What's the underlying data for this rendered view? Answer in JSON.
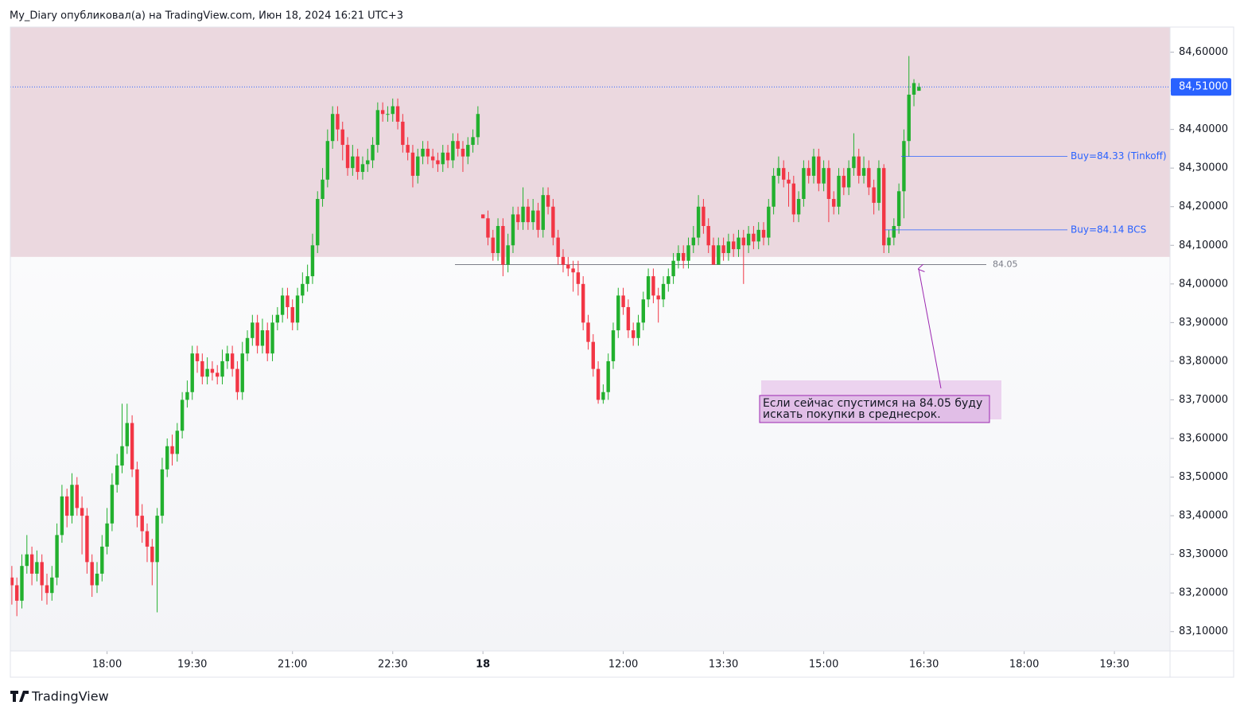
{
  "header": "My_Diary опубликовал(а) на TradingView.com, Июн 18, 2024 16:21 UTC+3",
  "footer": "TradingView",
  "chart_data": {
    "type": "candlestick",
    "up_color": "#22b02e",
    "down_color": "#f23645",
    "x": [
      0,
      1,
      2,
      3,
      4,
      5,
      6,
      7,
      8,
      9,
      10,
      11,
      12,
      13,
      14,
      15,
      16,
      17,
      18,
      19,
      20,
      21,
      22,
      23,
      24,
      25,
      26,
      27,
      28,
      29,
      30,
      31,
      32,
      33,
      34,
      35,
      36,
      37,
      38,
      39,
      40,
      41,
      42,
      43,
      44,
      45,
      46,
      47,
      48,
      49,
      50,
      51,
      52,
      53,
      54,
      55,
      56,
      57,
      58,
      59,
      60,
      61,
      62,
      63,
      64,
      65,
      66,
      67,
      68,
      69,
      70,
      71,
      72,
      73,
      74,
      75,
      76,
      77,
      78,
      79,
      80,
      81,
      82,
      83,
      84,
      85,
      86,
      87,
      88,
      89,
      90,
      91,
      92,
      93,
      94,
      95,
      96,
      97,
      98,
      99,
      100,
      101,
      102,
      103,
      104,
      105,
      106,
      107,
      108,
      109,
      110,
      111,
      112,
      113,
      114,
      115,
      116,
      117,
      118,
      119,
      120,
      121,
      122,
      123,
      124,
      125,
      126,
      127,
      128,
      129,
      130,
      131,
      132,
      133,
      134,
      135,
      136,
      137,
      138,
      139,
      140,
      141,
      142,
      143,
      144,
      145,
      146,
      147,
      148,
      149,
      150,
      151,
      152,
      153,
      154,
      155,
      156,
      157,
      158,
      159,
      160,
      161,
      162,
      163,
      164,
      165,
      166,
      167,
      168,
      169,
      170,
      171,
      172,
      173,
      174,
      175,
      176,
      177,
      178,
      179,
      180,
      181
    ],
    "ohlc": [
      [
        83.24,
        83.27,
        83.17,
        83.22
      ],
      [
        83.22,
        83.24,
        83.14,
        83.18
      ],
      [
        83.18,
        83.3,
        83.16,
        83.27
      ],
      [
        83.27,
        83.35,
        83.25,
        83.3
      ],
      [
        83.3,
        83.32,
        83.22,
        83.25
      ],
      [
        83.25,
        83.31,
        83.23,
        83.28
      ],
      [
        83.28,
        83.3,
        83.18,
        83.22
      ],
      [
        83.22,
        83.25,
        83.17,
        83.2
      ],
      [
        83.2,
        83.27,
        83.18,
        83.24
      ],
      [
        83.24,
        83.38,
        83.22,
        83.35
      ],
      [
        83.35,
        83.48,
        83.33,
        83.45
      ],
      [
        83.45,
        83.47,
        83.37,
        83.4
      ],
      [
        83.4,
        83.51,
        83.38,
        83.48
      ],
      [
        83.48,
        83.5,
        83.4,
        83.42
      ],
      [
        83.42,
        83.45,
        83.3,
        83.4
      ],
      [
        83.4,
        83.42,
        83.25,
        83.28
      ],
      [
        83.28,
        83.3,
        83.19,
        83.22
      ],
      [
        83.22,
        83.28,
        83.2,
        83.25
      ],
      [
        83.25,
        83.35,
        83.23,
        83.32
      ],
      [
        83.32,
        83.42,
        83.3,
        83.38
      ],
      [
        83.38,
        83.51,
        83.36,
        83.48
      ],
      [
        83.48,
        83.56,
        83.46,
        83.53
      ],
      [
        83.53,
        83.69,
        83.51,
        83.58
      ],
      [
        83.58,
        83.69,
        83.56,
        83.64
      ],
      [
        83.64,
        83.66,
        83.5,
        83.52
      ],
      [
        83.52,
        83.54,
        83.37,
        83.4
      ],
      [
        83.4,
        83.43,
        83.33,
        83.36
      ],
      [
        83.36,
        83.38,
        83.28,
        83.32
      ],
      [
        83.32,
        83.34,
        83.22,
        83.28
      ],
      [
        83.28,
        83.42,
        83.15,
        83.4
      ],
      [
        83.4,
        83.55,
        83.38,
        83.52
      ],
      [
        83.52,
        83.6,
        83.5,
        83.58
      ],
      [
        83.58,
        83.61,
        83.53,
        83.56
      ],
      [
        83.56,
        83.64,
        83.54,
        83.62
      ],
      [
        83.62,
        83.72,
        83.6,
        83.7
      ],
      [
        83.7,
        83.75,
        83.68,
        83.72
      ],
      [
        83.72,
        83.84,
        83.7,
        83.82
      ],
      [
        83.82,
        83.84,
        83.77,
        83.8
      ],
      [
        83.8,
        83.82,
        83.74,
        83.76
      ],
      [
        83.76,
        83.81,
        83.74,
        83.78
      ],
      [
        83.78,
        83.8,
        83.75,
        83.77
      ],
      [
        83.77,
        83.79,
        83.74,
        83.76
      ],
      [
        83.76,
        83.83,
        83.74,
        83.8
      ],
      [
        83.8,
        83.84,
        83.78,
        83.82
      ],
      [
        83.82,
        83.84,
        83.76,
        83.78
      ],
      [
        83.78,
        83.8,
        83.7,
        83.72
      ],
      [
        83.72,
        83.85,
        83.7,
        83.82
      ],
      [
        83.82,
        83.88,
        83.8,
        83.86
      ],
      [
        83.86,
        83.92,
        83.84,
        83.9
      ],
      [
        83.9,
        83.92,
        83.82,
        83.84
      ],
      [
        83.84,
        83.91,
        83.82,
        83.88
      ],
      [
        83.88,
        83.9,
        83.8,
        83.82
      ],
      [
        83.82,
        83.92,
        83.8,
        83.9
      ],
      [
        83.9,
        83.94,
        83.88,
        83.92
      ],
      [
        83.92,
        83.99,
        83.9,
        83.97
      ],
      [
        83.97,
        83.99,
        83.91,
        83.94
      ],
      [
        83.94,
        83.96,
        83.88,
        83.9
      ],
      [
        83.9,
        83.99,
        83.88,
        83.97
      ],
      [
        83.97,
        84.03,
        83.95,
        84.0
      ],
      [
        84.0,
        84.05,
        83.98,
        84.02
      ],
      [
        84.02,
        84.13,
        84.0,
        84.1
      ],
      [
        84.1,
        84.24,
        84.08,
        84.22
      ],
      [
        84.22,
        84.3,
        84.2,
        84.27
      ],
      [
        84.27,
        84.4,
        84.25,
        84.37
      ],
      [
        84.37,
        84.46,
        84.35,
        84.44
      ],
      [
        84.44,
        84.46,
        84.37,
        84.4
      ],
      [
        84.4,
        84.42,
        84.32,
        84.36
      ],
      [
        84.36,
        84.38,
        84.28,
        84.3
      ],
      [
        84.3,
        84.36,
        84.28,
        84.33
      ],
      [
        84.33,
        84.35,
        84.27,
        84.29
      ],
      [
        84.29,
        84.33,
        84.27,
        84.31
      ],
      [
        84.31,
        84.35,
        84.29,
        84.32
      ],
      [
        84.32,
        84.38,
        84.3,
        84.36
      ],
      [
        84.36,
        84.47,
        84.34,
        84.45
      ],
      [
        84.45,
        84.47,
        84.42,
        84.44
      ],
      [
        84.44,
        84.46,
        84.42,
        84.44
      ],
      [
        84.44,
        84.48,
        84.42,
        84.46
      ],
      [
        84.46,
        84.48,
        84.4,
        84.42
      ],
      [
        84.42,
        84.44,
        84.34,
        84.36
      ],
      [
        84.36,
        84.38,
        84.32,
        84.34
      ],
      [
        84.34,
        84.36,
        84.25,
        84.28
      ],
      [
        84.28,
        84.35,
        84.26,
        84.33
      ],
      [
        84.33,
        84.37,
        84.31,
        84.35
      ],
      [
        84.35,
        84.37,
        84.31,
        84.33
      ],
      [
        84.33,
        84.35,
        84.3,
        84.32
      ],
      [
        84.32,
        84.34,
        84.29,
        84.31
      ],
      [
        84.31,
        84.36,
        84.29,
        84.34
      ],
      [
        84.34,
        84.36,
        84.3,
        84.32
      ],
      [
        84.32,
        84.39,
        84.3,
        84.37
      ],
      [
        84.37,
        84.39,
        84.33,
        84.35
      ],
      [
        84.35,
        84.37,
        84.29,
        84.33
      ],
      [
        84.33,
        84.38,
        84.31,
        84.36
      ],
      [
        84.36,
        84.4,
        84.34,
        84.38
      ],
      [
        84.38,
        84.46,
        84.36,
        84.44
      ],
      [
        84.18,
        84.18,
        84.17,
        84.17
      ],
      [
        84.17,
        84.19,
        84.1,
        84.12
      ],
      [
        84.12,
        84.14,
        84.06,
        84.08
      ],
      [
        84.08,
        84.17,
        84.06,
        84.15
      ],
      [
        84.15,
        84.17,
        84.02,
        84.05
      ],
      [
        84.05,
        84.13,
        84.03,
        84.1
      ],
      [
        84.1,
        84.2,
        84.08,
        84.18
      ],
      [
        84.18,
        84.2,
        84.14,
        84.16
      ],
      [
        84.16,
        84.25,
        84.14,
        84.2
      ],
      [
        84.2,
        84.22,
        84.14,
        84.16
      ],
      [
        84.16,
        84.22,
        84.14,
        84.19
      ],
      [
        84.19,
        84.21,
        84.12,
        84.14
      ],
      [
        84.14,
        84.25,
        84.12,
        84.23
      ],
      [
        84.23,
        84.25,
        84.18,
        84.2
      ],
      [
        84.2,
        84.22,
        84.1,
        84.12
      ],
      [
        84.12,
        84.14,
        84.05,
        84.07
      ],
      [
        84.07,
        84.09,
        84.03,
        84.05
      ],
      [
        84.05,
        84.07,
        84.02,
        84.04
      ],
      [
        84.04,
        84.06,
        83.98,
        84.03
      ],
      [
        84.03,
        84.06,
        83.97,
        84.0
      ],
      [
        84.0,
        84.02,
        83.88,
        83.9
      ],
      [
        83.9,
        83.92,
        83.83,
        83.85
      ],
      [
        83.85,
        83.87,
        83.76,
        83.78
      ],
      [
        83.78,
        83.8,
        83.69,
        83.7
      ],
      [
        83.7,
        83.74,
        83.69,
        83.72
      ],
      [
        83.72,
        83.82,
        83.7,
        83.8
      ],
      [
        83.8,
        83.9,
        83.78,
        83.88
      ],
      [
        83.88,
        83.99,
        83.86,
        83.97
      ],
      [
        83.97,
        83.99,
        83.92,
        83.94
      ],
      [
        83.94,
        83.96,
        83.86,
        83.88
      ],
      [
        83.88,
        83.9,
        83.84,
        83.86
      ],
      [
        83.86,
        83.92,
        83.84,
        83.9
      ],
      [
        83.9,
        83.98,
        83.88,
        83.96
      ],
      [
        83.96,
        84.04,
        83.94,
        84.02
      ],
      [
        84.02,
        84.04,
        83.95,
        83.97
      ],
      [
        83.97,
        83.99,
        83.9,
        83.96
      ],
      [
        83.96,
        84.02,
        83.94,
        84.0
      ],
      [
        84.0,
        84.04,
        83.98,
        84.02
      ],
      [
        84.02,
        84.08,
        84.0,
        84.06
      ],
      [
        84.06,
        84.1,
        84.04,
        84.08
      ],
      [
        84.08,
        84.1,
        84.04,
        84.06
      ],
      [
        84.06,
        84.12,
        84.04,
        84.1
      ],
      [
        84.1,
        84.15,
        84.08,
        84.12
      ],
      [
        84.12,
        84.23,
        84.1,
        84.2
      ],
      [
        84.2,
        84.22,
        84.13,
        84.15
      ],
      [
        84.15,
        84.17,
        84.08,
        84.1
      ],
      [
        84.1,
        84.12,
        84.05,
        84.05
      ],
      [
        84.05,
        84.12,
        84.05,
        84.1
      ],
      [
        84.1,
        84.12,
        84.06,
        84.08
      ],
      [
        84.08,
        84.13,
        84.06,
        84.11
      ],
      [
        84.11,
        84.13,
        84.07,
        84.09
      ],
      [
        84.09,
        84.14,
        84.07,
        84.12
      ],
      [
        84.12,
        84.14,
        84.0,
        84.1
      ],
      [
        84.1,
        84.15,
        84.08,
        84.13
      ],
      [
        84.13,
        84.15,
        84.09,
        84.11
      ],
      [
        84.11,
        84.16,
        84.09,
        84.14
      ],
      [
        84.14,
        84.16,
        84.1,
        84.12
      ],
      [
        84.12,
        84.22,
        84.1,
        84.2
      ],
      [
        84.2,
        84.3,
        84.18,
        84.28
      ],
      [
        84.28,
        84.33,
        84.26,
        84.3
      ],
      [
        84.3,
        84.32,
        84.25,
        84.27
      ],
      [
        84.27,
        84.29,
        84.2,
        84.26
      ],
      [
        84.26,
        84.28,
        84.16,
        84.18
      ],
      [
        84.18,
        84.24,
        84.16,
        84.22
      ],
      [
        84.22,
        84.32,
        84.2,
        84.3
      ],
      [
        84.3,
        84.32,
        84.26,
        84.28
      ],
      [
        84.28,
        84.35,
        84.26,
        84.33
      ],
      [
        84.33,
        84.35,
        84.24,
        84.26
      ],
      [
        84.26,
        84.32,
        84.24,
        84.3
      ],
      [
        84.3,
        84.32,
        84.16,
        84.22
      ],
      [
        84.22,
        84.24,
        84.18,
        84.2
      ],
      [
        84.2,
        84.3,
        84.18,
        84.28
      ],
      [
        84.28,
        84.3,
        84.23,
        84.25
      ],
      [
        84.25,
        84.32,
        84.23,
        84.3
      ],
      [
        84.3,
        84.39,
        84.28,
        84.33
      ],
      [
        84.33,
        84.35,
        84.26,
        84.28
      ],
      [
        84.28,
        84.33,
        84.26,
        84.3
      ],
      [
        84.3,
        84.32,
        84.23,
        84.25
      ],
      [
        84.25,
        84.27,
        84.18,
        84.21
      ],
      [
        84.21,
        84.32,
        84.19,
        84.3
      ],
      [
        84.3,
        84.31,
        84.08,
        84.1
      ],
      [
        84.1,
        84.14,
        84.08,
        84.12
      ],
      [
        84.12,
        84.17,
        84.1,
        84.15
      ],
      [
        84.15,
        84.26,
        84.13,
        84.24
      ],
      [
        84.24,
        84.4,
        84.17,
        84.37
      ],
      [
        84.37,
        84.59,
        84.33,
        84.49
      ],
      [
        84.49,
        84.53,
        84.46,
        84.52
      ],
      [
        84.5,
        84.52,
        84.5,
        84.51
      ]
    ],
    "xlim": [
      -0.3,
      231.1
    ],
    "xticks": [
      {
        "value": 19,
        "label": "18:00"
      },
      {
        "value": 36,
        "label": "19:30"
      },
      {
        "value": 56,
        "label": "21:00"
      },
      {
        "value": 76,
        "label": "22:30"
      },
      {
        "value": 94,
        "label": "18",
        "bold": true
      },
      {
        "value": 122,
        "label": "12:00"
      },
      {
        "value": 142,
        "label": "13:30"
      },
      {
        "value": 162,
        "label": "15:00"
      },
      {
        "value": 182,
        "label": "16:30"
      },
      {
        "value": 202,
        "label": "18:00"
      },
      {
        "value": 220,
        "label": "19:30"
      }
    ],
    "ylim": [
      83.05,
      84.665
    ],
    "yticks": [
      {
        "value": 83.1,
        "label": "83,10000"
      },
      {
        "value": 83.2,
        "label": "83,20000"
      },
      {
        "value": 83.3,
        "label": "83,30000"
      },
      {
        "value": 83.4,
        "label": "83,40000"
      },
      {
        "value": 83.5,
        "label": "83,50000"
      },
      {
        "value": 83.6,
        "label": "83,60000"
      },
      {
        "value": 83.7,
        "label": "83,70000"
      },
      {
        "value": 83.8,
        "label": "83,80000"
      },
      {
        "value": 83.9,
        "label": "83,90000"
      },
      {
        "value": 84.0,
        "label": "84,00000"
      },
      {
        "value": 84.1,
        "label": "84,10000"
      },
      {
        "value": 84.2,
        "label": "84,20000"
      },
      {
        "value": 84.3,
        "label": "84,30000"
      },
      {
        "value": 84.4,
        "label": "84,40000"
      },
      {
        "value": 84.5,
        "label": "84,50000"
      },
      {
        "value": 84.6,
        "label": "84,60000"
      }
    ],
    "last_price": {
      "value": 84.51,
      "label": "84,51000"
    },
    "zone_low": 84.07,
    "zone_color": "#ebd8df",
    "level": 84.05,
    "orders": [
      {
        "value": 84.33,
        "label": "Buy=84.33 (Tinkoff)"
      },
      {
        "value": 84.14,
        "label": "Buy=84.14 BCS"
      }
    ],
    "note": [
      "Если сейчас спустимся на 84.05 буду",
      "искать покупки в среднесрок."
    ]
  }
}
